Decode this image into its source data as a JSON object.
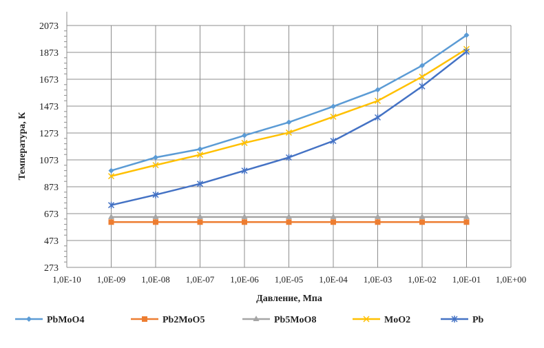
{
  "chart_data": {
    "type": "line",
    "xlabel": "Давление, Мпа",
    "ylabel": "Температура, К",
    "x_scale": "log",
    "xlim": [
      1e-10,
      1
    ],
    "x_tick_labels": [
      "1,0E-10",
      "1,0E-09",
      "1,0E-08",
      "1,0E-07",
      "1,0E-06",
      "1,0E-05",
      "1,0E-04",
      "1,0E-03",
      "1,0E-02",
      "1,0E-01",
      "1,0E+00"
    ],
    "ylim": [
      273,
      2073
    ],
    "y_ticks": [
      273,
      473,
      673,
      873,
      1073,
      1273,
      1473,
      1673,
      1873,
      2073
    ],
    "grid": true,
    "legend_position": "bottom",
    "x": [
      1e-09,
      1e-08,
      1e-07,
      1e-06,
      1e-05,
      0.0001,
      0.001,
      0.01,
      0.1
    ],
    "series": [
      {
        "name": "PbMoO4",
        "color": "#5b9bd5",
        "marker": "diamond",
        "values": [
          993,
          1091,
          1153,
          1255,
          1353,
          1471,
          1595,
          1775,
          2001
        ]
      },
      {
        "name": "Pb2MoO5",
        "color": "#ed7d31",
        "marker": "square",
        "values": [
          610,
          610,
          610,
          610,
          610,
          610,
          610,
          610,
          610
        ]
      },
      {
        "name": "Pb5MoO8",
        "color": "#a5a5a5",
        "marker": "triangle",
        "values": [
          648,
          648,
          648,
          648,
          648,
          648,
          648,
          648,
          648
        ]
      },
      {
        "name": "MoO2",
        "color": "#ffc000",
        "marker": "x",
        "values": [
          952,
          1034,
          1111,
          1199,
          1276,
          1394,
          1512,
          1692,
          1898
        ]
      },
      {
        "name": "Pb",
        "color": "#4472c4",
        "marker": "star",
        "values": [
          736,
          813,
          895,
          993,
          1091,
          1214,
          1389,
          1620,
          1878
        ]
      }
    ]
  }
}
